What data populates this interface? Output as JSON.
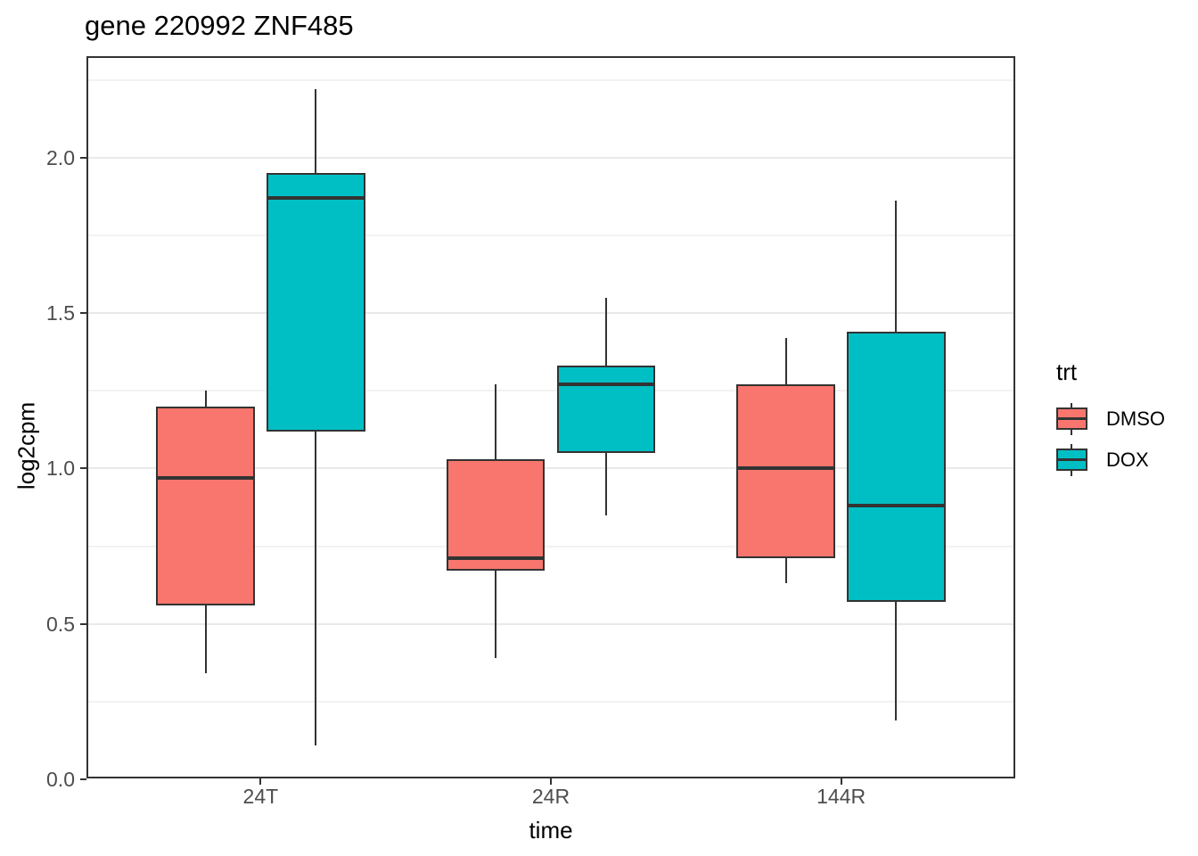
{
  "chart_data": {
    "type": "boxplot",
    "title": "gene 220992 ZNF485",
    "xlabel": "time",
    "ylabel": "log2cpm",
    "categories": [
      "24T",
      "24R",
      "144R"
    ],
    "y_axis": {
      "tick_labels": [
        "0.0",
        "0.5",
        "1.0",
        "1.5",
        "2.0"
      ],
      "tick_values": [
        0,
        0.5,
        1,
        1.5,
        2
      ],
      "minor_values": [
        0.25,
        0.75,
        1.25,
        1.75,
        2.25
      ],
      "ylim": [
        0.003,
        2.326
      ]
    },
    "grid": true,
    "legend_position": "right",
    "series": [
      {
        "name": "DMSO",
        "fill": "#F8766D",
        "boxes": [
          {
            "category": "24T",
            "whisker_low": 0.34,
            "q1": 0.56,
            "median": 0.97,
            "q3": 1.2,
            "whisker_high": 1.25
          },
          {
            "category": "24R",
            "whisker_low": 0.39,
            "q1": 0.67,
            "median": 0.71,
            "q3": 1.03,
            "whisker_high": 1.27
          },
          {
            "category": "144R",
            "whisker_low": 0.63,
            "q1": 0.71,
            "median": 1.0,
            "q3": 1.27,
            "whisker_high": 1.42
          }
        ]
      },
      {
        "name": "DOX",
        "fill": "#00BFC4",
        "boxes": [
          {
            "category": "24T",
            "whisker_low": 0.11,
            "q1": 1.12,
            "median": 1.87,
            "q3": 1.95,
            "whisker_high": 2.22
          },
          {
            "category": "24R",
            "whisker_low": 0.85,
            "q1": 1.05,
            "median": 1.27,
            "q3": 1.33,
            "whisker_high": 1.55
          },
          {
            "category": "144R",
            "whisker_low": 0.19,
            "q1": 0.57,
            "median": 0.88,
            "q3": 1.44,
            "whisker_high": 1.86
          }
        ]
      }
    ]
  },
  "legend": {
    "title": "trt",
    "items": [
      {
        "label": "DMSO",
        "color": "#F8766D"
      },
      {
        "label": "DOX",
        "color": "#00BFC4"
      }
    ]
  },
  "colors": {
    "box_line": "#333333",
    "panel_border": "#333333",
    "grid_major": "#E9E9E9",
    "grid_minor": "#F2F2F2",
    "axis_text": "#4D4D4D"
  }
}
